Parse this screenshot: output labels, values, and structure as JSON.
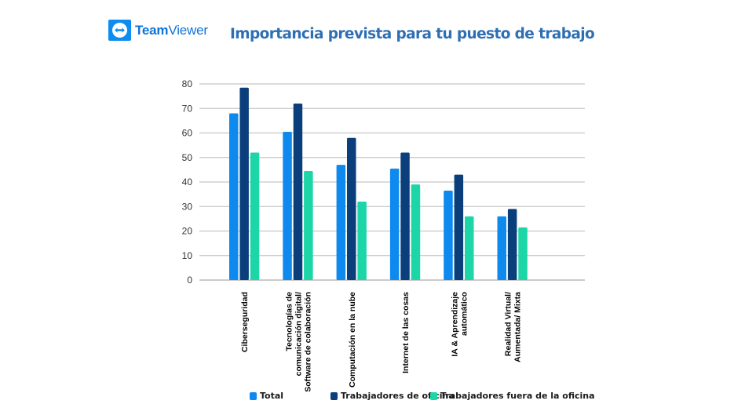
{
  "logo": {
    "brand_bold": "Team",
    "brand_light": "Viewer"
  },
  "chart_data": {
    "type": "bar",
    "title": "Importancia prevista para tu puesto de trabajo",
    "xlabel": "",
    "ylabel": "",
    "ylim": [
      0,
      80
    ],
    "yticks": [
      0,
      10,
      20,
      30,
      40,
      50,
      60,
      70,
      80
    ],
    "grid": true,
    "legend_position": "bottom",
    "categories": [
      [
        "Ciberseguridad"
      ],
      [
        "Tecnologías de",
        "comunicación digital/",
        "Software de colaboración"
      ],
      [
        "Computación en la nube"
      ],
      [
        "Internet de las cosas"
      ],
      [
        "IA & Aprendizaje",
        "automático"
      ],
      [
        "Realidad Virtual/",
        "Aumentada/ Mixta"
      ]
    ],
    "series": [
      {
        "name": "Total",
        "color": "#0E8AEE",
        "values": [
          68,
          60.5,
          47,
          45.5,
          36.5,
          26
        ]
      },
      {
        "name": "Trabajadores de oficina",
        "color": "#0B3F7C",
        "values": [
          78.5,
          72,
          58,
          52,
          43,
          29
        ]
      },
      {
        "name": "Trabajadores fuera de la oficina",
        "color": "#1DD6A7",
        "values": [
          52,
          44.5,
          32,
          39,
          26,
          21.5
        ]
      }
    ]
  }
}
